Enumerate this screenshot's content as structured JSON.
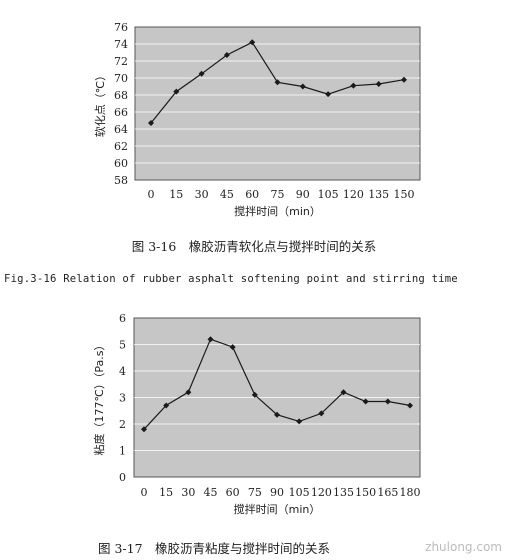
{
  "chart_data": [
    {
      "type": "line",
      "xlabel": "搅拌时间（min）",
      "ylabel": "软化点（℃）",
      "categories": [
        "0",
        "15",
        "30",
        "45",
        "60",
        "75",
        "90",
        "105",
        "120",
        "135",
        "150"
      ],
      "yticks": [
        "58",
        "60",
        "62",
        "64",
        "66",
        "68",
        "70",
        "72",
        "74",
        "76"
      ],
      "ylim": [
        58,
        76
      ],
      "series": [
        {
          "values": [
            64.7,
            68.4,
            70.5,
            72.7,
            74.2,
            69.5,
            69.0,
            68.1,
            69.1,
            69.3,
            69.8
          ]
        }
      ],
      "grid": true,
      "caption_zh": "图 3-16　橡胶沥青软化点与搅拌时间的关系",
      "caption_en": "Fig.3-16 Relation of rubber asphalt softening point and stirring time"
    },
    {
      "type": "line",
      "xlabel": "搅拌时间（min）",
      "ylabel": "粘度（177℃）（Pa.s）",
      "categories": [
        "0",
        "15",
        "30",
        "45",
        "60",
        "75",
        "90",
        "105",
        "120",
        "135",
        "150",
        "165",
        "180"
      ],
      "yticks": [
        "0",
        "1",
        "2",
        "3",
        "4",
        "5",
        "6"
      ],
      "ylim": [
        0,
        6
      ],
      "series": [
        {
          "values": [
            1.8,
            2.7,
            3.2,
            5.2,
            4.9,
            3.1,
            2.35,
            2.1,
            2.4,
            3.2,
            2.85,
            2.85,
            2.7
          ]
        }
      ],
      "grid": true,
      "caption_zh": "图 3-17　橡胶沥青粘度与搅拌时间的关系"
    }
  ],
  "colors": {
    "plot_bg": "#c6c6c6",
    "line": "#1a1a1a",
    "grid": "#ffffff"
  },
  "watermark": "zhulong.com"
}
